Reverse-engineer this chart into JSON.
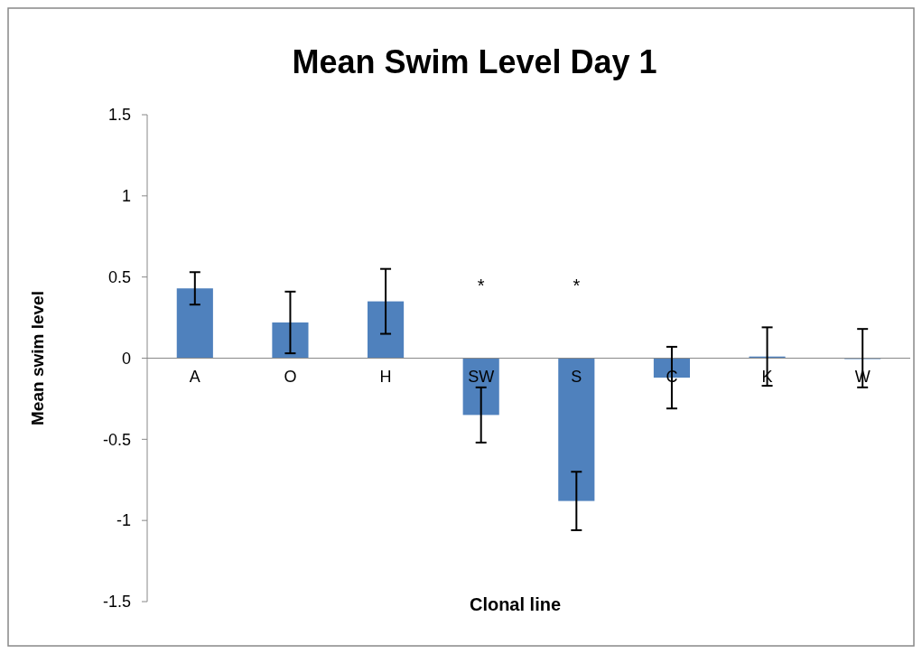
{
  "chart_data": {
    "type": "bar",
    "title": "Mean Swim Level Day 1",
    "xlabel": "Clonal line",
    "ylabel": "Mean swim level",
    "categories": [
      "A",
      "O",
      "H",
      "SW",
      "S",
      "C",
      "K",
      "W"
    ],
    "values": [
      0.43,
      0.22,
      0.35,
      -0.35,
      -0.88,
      -0.12,
      0.01,
      0
    ],
    "errors": [
      0.1,
      0.19,
      0.2,
      0.17,
      0.18,
      0.19,
      0.18,
      0.18
    ],
    "color": "#4f81bd",
    "ylim": [
      -1.5,
      1.5
    ],
    "yticks": [
      -1.5,
      -1,
      -0.5,
      0,
      0.5,
      1,
      1.5
    ],
    "annotations": [
      "*",
      "*"
    ],
    "grid": false
  }
}
